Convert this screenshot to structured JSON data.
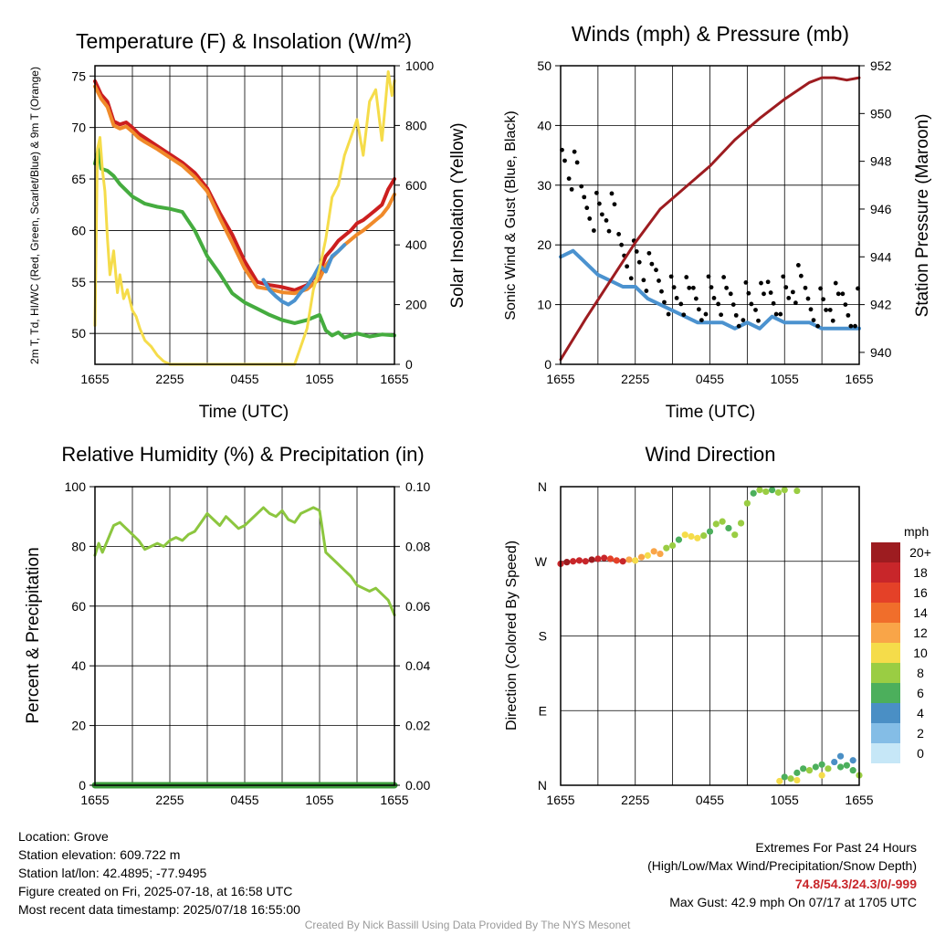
{
  "chart_data": [
    {
      "type": "line",
      "title": "Temperature (F) & Insolation (W/m²)",
      "xlabel": "Time (UTC)",
      "ylabel": "2m T, Td, HI/WC (Red, Green, Scarlet/Blue) & 9m T (Orange)",
      "ylabel_right": "Solar Insolation (Yellow)",
      "x_ticks": [
        "1655",
        "2255",
        "0455",
        "1055",
        "1655"
      ],
      "ylim": [
        47,
        76
      ],
      "y_ticks": [
        50,
        55,
        60,
        65,
        70,
        75
      ],
      "ylim_right": [
        0,
        1000
      ],
      "y_ticks_right": [
        0,
        200,
        400,
        600,
        800,
        1000
      ],
      "grid": true,
      "series": [
        {
          "color": "#cc1f1f",
          "axis": "left",
          "x": [
            0,
            0.5,
            1,
            1.5,
            2,
            2.5,
            3,
            3.5,
            4,
            5,
            6,
            7,
            8,
            9,
            10,
            11,
            12,
            13,
            14,
            15,
            16,
            17,
            18,
            18.5,
            19,
            19.5,
            20,
            20.5,
            21,
            21.5,
            22,
            22.5,
            23,
            23.5,
            24
          ],
          "values": [
            74.5,
            73.2,
            72.5,
            70.6,
            70.3,
            70.5,
            70.0,
            69.4,
            69.0,
            68.2,
            67.4,
            66.6,
            65.6,
            64.1,
            61.7,
            59.6,
            57.0,
            55.0,
            54.7,
            54.5,
            54.2,
            54.7,
            56.0,
            57.5,
            58.2,
            59.0,
            59.5,
            60.0,
            60.7,
            61.0,
            61.5,
            62.0,
            62.5,
            64.0,
            65.0
          ]
        },
        {
          "color": "#f08a2a",
          "axis": "left",
          "x": [
            0,
            0.5,
            1,
            1.5,
            2,
            2.5,
            3,
            3.5,
            4,
            5,
            6,
            7,
            8,
            9,
            10,
            11,
            12,
            13,
            14,
            15,
            16,
            17,
            18,
            18.5,
            19,
            19.5,
            20,
            20.5,
            21,
            21.5,
            22,
            22.5,
            23,
            23.5,
            24
          ],
          "values": [
            74.0,
            72.8,
            72.0,
            70.2,
            69.9,
            70.1,
            69.6,
            69.0,
            68.6,
            67.9,
            67.1,
            66.3,
            65.2,
            63.8,
            61.2,
            58.8,
            56.3,
            54.5,
            54.3,
            54.0,
            53.9,
            54.3,
            55.3,
            56.6,
            57.4,
            58.0,
            58.6,
            59.1,
            59.6,
            60.0,
            60.5,
            61.0,
            61.5,
            62.3,
            63.5
          ]
        },
        {
          "color": "#4b92cf",
          "axis": "left",
          "x": [
            13.5,
            14,
            14.5,
            15,
            15.5,
            16,
            16.5,
            17,
            17.5,
            18,
            18.5,
            19,
            19.5,
            20
          ],
          "values": [
            55.2,
            54.2,
            53.6,
            53.1,
            52.8,
            53.2,
            54.0,
            54.6,
            55.5,
            56.6,
            56.0,
            57.5,
            58.0,
            58.6
          ]
        },
        {
          "color": "#45ac3f",
          "axis": "left",
          "x": [
            0,
            0.3,
            0.5,
            1,
            1.5,
            2,
            3,
            4,
            5,
            6,
            7,
            8,
            9,
            10,
            11,
            12,
            13,
            14,
            15,
            16,
            17,
            18,
            18.5,
            19,
            19.5,
            20,
            21,
            22,
            23,
            24
          ],
          "values": [
            66.5,
            68.0,
            66.0,
            65.8,
            65.3,
            64.5,
            63.3,
            62.6,
            62.3,
            62.1,
            61.8,
            60.0,
            57.5,
            55.8,
            53.9,
            53.0,
            52.4,
            51.8,
            51.3,
            51.0,
            51.3,
            51.8,
            50.3,
            49.8,
            50.1,
            49.6,
            50.0,
            49.7,
            49.9,
            49.8
          ]
        },
        {
          "color": "#f5dc4a",
          "axis": "right",
          "x": [
            0,
            0.2,
            0.4,
            0.6,
            0.8,
            1.0,
            1.2,
            1.5,
            1.8,
            2.0,
            2.3,
            2.6,
            3.0,
            3.3,
            3.6,
            4.0,
            4.5,
            5.0,
            5.5,
            6,
            8,
            10,
            12,
            16,
            16.5,
            17,
            17.5,
            18,
            18.5,
            19,
            19.5,
            20,
            20.5,
            21,
            21.5,
            22,
            22.5,
            23,
            23.2,
            23.5,
            23.8,
            24
          ],
          "values": [
            130,
            720,
            760,
            650,
            580,
            420,
            300,
            380,
            240,
            300,
            220,
            250,
            180,
            160,
            120,
            80,
            60,
            30,
            10,
            0,
            0,
            0,
            0,
            0,
            60,
            120,
            250,
            320,
            420,
            560,
            600,
            700,
            760,
            820,
            700,
            880,
            920,
            750,
            840,
            980,
            900,
            950
          ]
        }
      ]
    },
    {
      "type": "line",
      "title": "Winds (mph) & Pressure (mb)",
      "xlabel": "Time (UTC)",
      "ylabel": "Sonic Wind & Gust (Blue, Black)",
      "ylabel_right": "Station Pressure (Maroon)",
      "x_ticks": [
        "1655",
        "2255",
        "0455",
        "1055",
        "1655"
      ],
      "ylim": [
        0,
        50
      ],
      "y_ticks": [
        0,
        10,
        20,
        30,
        40,
        50
      ],
      "ylim_right": [
        939.5,
        952
      ],
      "y_ticks_right": [
        940,
        942,
        944,
        946,
        948,
        950,
        952
      ],
      "grid": true,
      "series": [
        {
          "color": "#4b92cf",
          "axis": "left",
          "x": [
            0,
            1,
            2,
            3,
            4,
            5,
            6,
            7,
            8,
            9,
            10,
            11,
            12,
            13,
            14,
            15,
            16,
            17,
            18,
            19,
            20,
            21,
            22,
            23,
            24
          ],
          "values": [
            18,
            19,
            17,
            15,
            14,
            13,
            13,
            11,
            10,
            9,
            8,
            7,
            7,
            7,
            6,
            7,
            6,
            8,
            7,
            7,
            7,
            6,
            6,
            6,
            6
          ]
        },
        {
          "color": "#000000",
          "axis": "left",
          "style": "markers",
          "x": [
            0,
            1,
            2,
            3,
            4,
            5,
            6,
            7,
            8,
            9,
            10,
            11,
            12,
            13,
            14,
            15,
            16,
            17,
            18,
            19,
            20,
            21,
            22,
            23,
            24
          ],
          "values": [
            35,
            32,
            28,
            26,
            25,
            20,
            18,
            15,
            14,
            12,
            11,
            11,
            12,
            11,
            10,
            11,
            10,
            12,
            12,
            13,
            11,
            10,
            10,
            10,
            10
          ]
        },
        {
          "color": "#9d1c20",
          "axis": "right",
          "x": [
            0,
            2,
            4,
            6,
            8,
            10,
            12,
            14,
            16,
            18,
            20,
            21,
            22,
            23,
            24
          ],
          "values": [
            939.7,
            941.4,
            943.0,
            944.6,
            946.0,
            946.9,
            947.8,
            948.9,
            949.8,
            950.6,
            951.3,
            951.5,
            951.5,
            951.4,
            951.5
          ]
        }
      ]
    },
    {
      "type": "line",
      "title": "Relative Humidity (%) & Precipitation (in)",
      "xlabel": "",
      "ylabel": "Percent & Precipitation",
      "x_ticks": [
        "1655",
        "2255",
        "0455",
        "1055",
        "1655"
      ],
      "ylim": [
        0,
        100
      ],
      "y_ticks": [
        0,
        20,
        40,
        60,
        80,
        100
      ],
      "ylim_right": [
        0,
        0.1
      ],
      "y_ticks_right": [
        "0.00",
        "0.02",
        "0.04",
        "0.06",
        "0.08",
        "0.10"
      ],
      "grid": true,
      "series": [
        {
          "color": "#8cc63f",
          "axis": "left",
          "x": [
            0,
            0.3,
            0.6,
            1,
            1.5,
            2,
            2.5,
            3,
            3.5,
            4,
            4.5,
            5,
            5.5,
            6,
            6.5,
            7,
            7.5,
            8,
            8.5,
            9,
            9.5,
            10,
            10.5,
            11,
            11.5,
            12,
            12.5,
            13,
            13.5,
            14,
            14.5,
            15,
            15.5,
            16,
            16.5,
            17,
            17.5,
            18,
            18.5,
            19,
            19.5,
            20,
            20.5,
            21,
            21.5,
            22,
            22.5,
            23,
            23.5,
            24
          ],
          "values": [
            77,
            81,
            78,
            82,
            87,
            88,
            86,
            84,
            82,
            79,
            80,
            81,
            80,
            82,
            83,
            82,
            84,
            85,
            88,
            91,
            89,
            87,
            90,
            88,
            86,
            87,
            89,
            91,
            93,
            91,
            90,
            92,
            89,
            88,
            91,
            92,
            93,
            92,
            78,
            76,
            74,
            72,
            70,
            67,
            66,
            65,
            66,
            64,
            62,
            57
          ]
        },
        {
          "color": "#3b9b3b",
          "axis": "right",
          "x": [
            0,
            24
          ],
          "values": [
            0,
            0
          ]
        }
      ]
    },
    {
      "type": "scatter",
      "title": "Wind Direction",
      "xlabel": "",
      "ylabel": "Direction (Colored By Speed)",
      "x_ticks": [
        "1655",
        "2255",
        "0455",
        "1055",
        "1655"
      ],
      "y_ticks": [
        "N",
        "E",
        "S",
        "W",
        "N"
      ],
      "ylim": [
        0,
        360
      ],
      "grid": true,
      "points": [
        {
          "x": 0,
          "y": 267,
          "c": 18
        },
        {
          "x": 0.5,
          "y": 269,
          "c": 19
        },
        {
          "x": 1,
          "y": 270,
          "c": 18
        },
        {
          "x": 1.5,
          "y": 271,
          "c": 18
        },
        {
          "x": 2,
          "y": 270,
          "c": 17
        },
        {
          "x": 2.5,
          "y": 272,
          "c": 19
        },
        {
          "x": 3,
          "y": 273,
          "c": 18
        },
        {
          "x": 3.5,
          "y": 274,
          "c": 17
        },
        {
          "x": 4,
          "y": 273,
          "c": 16
        },
        {
          "x": 4.5,
          "y": 271,
          "c": 15
        },
        {
          "x": 5,
          "y": 270,
          "c": 17
        },
        {
          "x": 5.5,
          "y": 272,
          "c": 11
        },
        {
          "x": 6,
          "y": 271,
          "c": 9
        },
        {
          "x": 6.5,
          "y": 275,
          "c": 12
        },
        {
          "x": 7,
          "y": 277,
          "c": 10
        },
        {
          "x": 7.5,
          "y": 282,
          "c": 11
        },
        {
          "x": 8,
          "y": 279,
          "c": 12
        },
        {
          "x": 8.5,
          "y": 286,
          "c": 7
        },
        {
          "x": 9,
          "y": 289,
          "c": 8
        },
        {
          "x": 9.5,
          "y": 296,
          "c": 6
        },
        {
          "x": 10,
          "y": 302,
          "c": 9
        },
        {
          "x": 10.5,
          "y": 300,
          "c": 10
        },
        {
          "x": 11,
          "y": 298,
          "c": 9
        },
        {
          "x": 11.5,
          "y": 301,
          "c": 8
        },
        {
          "x": 12,
          "y": 306,
          "c": 6
        },
        {
          "x": 12.5,
          "y": 315,
          "c": 7
        },
        {
          "x": 13,
          "y": 318,
          "c": 8
        },
        {
          "x": 13.5,
          "y": 310,
          "c": 6
        },
        {
          "x": 14,
          "y": 302,
          "c": 7
        },
        {
          "x": 14.5,
          "y": 316,
          "c": 8
        },
        {
          "x": 15,
          "y": 340,
          "c": 7
        },
        {
          "x": 15.5,
          "y": 352,
          "c": 6
        },
        {
          "x": 16,
          "y": 356,
          "c": 8
        },
        {
          "x": 16.5,
          "y": 354,
          "c": 7
        },
        {
          "x": 17,
          "y": 356,
          "c": 6
        },
        {
          "x": 17.5,
          "y": 353,
          "c": 8
        },
        {
          "x": 18,
          "y": 356,
          "c": 7
        },
        {
          "x": 19,
          "y": 355,
          "c": 8
        },
        {
          "x": 17.6,
          "y": 5,
          "c": 9
        },
        {
          "x": 18,
          "y": 10,
          "c": 6
        },
        {
          "x": 18.5,
          "y": 8,
          "c": 7
        },
        {
          "x": 19,
          "y": 15,
          "c": 5
        },
        {
          "x": 19.5,
          "y": 20,
          "c": 6
        },
        {
          "x": 20,
          "y": 18,
          "c": 8
        },
        {
          "x": 20.5,
          "y": 22,
          "c": 5
        },
        {
          "x": 21,
          "y": 25,
          "c": 6
        },
        {
          "x": 21.5,
          "y": 20,
          "c": 7
        },
        {
          "x": 22,
          "y": 28,
          "c": 4
        },
        {
          "x": 22.5,
          "y": 22,
          "c": 6
        },
        {
          "x": 23,
          "y": 24,
          "c": 5
        },
        {
          "x": 23.5,
          "y": 18,
          "c": 6
        },
        {
          "x": 24,
          "y": 12,
          "c": 7
        },
        {
          "x": 22.5,
          "y": 35,
          "c": 4
        },
        {
          "x": 23.5,
          "y": 30,
          "c": 3
        },
        {
          "x": 21,
          "y": 12,
          "c": 9
        },
        {
          "x": 19,
          "y": 6,
          "c": 10
        }
      ],
      "legend": {
        "title": "mph",
        "labels": [
          "20+",
          "18",
          "16",
          "14",
          "12",
          "10",
          "8",
          "6",
          "4",
          "2",
          "0"
        ],
        "colors": [
          "#9d1c20",
          "#c8262a",
          "#e44128",
          "#f06e2b",
          "#f9a548",
          "#f5dc4a",
          "#9acd43",
          "#4caf5c",
          "#4a8fc5",
          "#84bde6",
          "#c6e7f7"
        ]
      }
    }
  ],
  "footer": {
    "location": "Location: Grove",
    "elevation": "Station elevation: 609.722 m",
    "latlon": "Station lat/lon: 42.4895; -77.9495",
    "created": "Figure created on Fri, 2025-07-18, at 16:58 UTC",
    "recent": "Most recent data timestamp: 2025/07/18 16:55:00",
    "extremes_title": "Extremes For Past 24 Hours",
    "extremes_sub": "(High/Low/Max Wind/Precipitation/Snow Depth)",
    "extremes_values": "74.8/54.3/24.3/0/-999",
    "max_gust": "Max Gust: 42.9 mph On 07/17 at 1705 UTC",
    "credit": "Created By Nick Bassill Using Data Provided By The NYS Mesonet"
  }
}
